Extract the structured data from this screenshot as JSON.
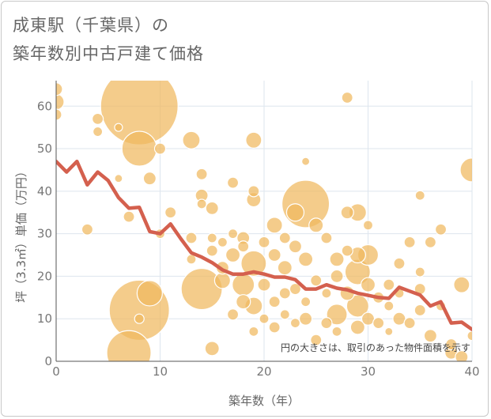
{
  "header": {
    "title_line1": "成東駅（千葉県）の",
    "title_line2": "築年数別中古戸建て価格"
  },
  "chart_data": {
    "type": "scatter",
    "title": "成東駅（千葉県）の築年数別中古戸建て価格",
    "xlabel": "築年数（年）",
    "ylabel": "坪（3.3㎡）単価（万円）",
    "xlim": [
      0,
      40
    ],
    "ylim": [
      0,
      66
    ],
    "x_ticks": [
      0,
      10,
      20,
      30,
      40
    ],
    "y_ticks": [
      0,
      10,
      20,
      30,
      40,
      50,
      60
    ],
    "grid": true,
    "note": "円の大きさは、取引のあった物件面積を示す",
    "colors": {
      "bubble": "#f0b95e",
      "bubble_stroke": "#ffffff",
      "trend": "#d4604e",
      "grid": "#dde5ee",
      "axis": "#555555"
    },
    "series": [
      {
        "kind": "bubbles",
        "points": [
          {
            "x": 0,
            "y": 64,
            "r": 8
          },
          {
            "x": 0,
            "y": 61,
            "r": 10
          },
          {
            "x": 0,
            "y": 58,
            "r": 7
          },
          {
            "x": 3,
            "y": 31,
            "r": 7
          },
          {
            "x": 4,
            "y": 57,
            "r": 7
          },
          {
            "x": 4,
            "y": 54,
            "r": 6
          },
          {
            "x": 6,
            "y": 55,
            "r": 5
          },
          {
            "x": 6,
            "y": 43,
            "r": 5
          },
          {
            "x": 7,
            "y": 34,
            "r": 7
          },
          {
            "x": 8,
            "y": 60,
            "r": 49
          },
          {
            "x": 8,
            "y": 50,
            "r": 22
          },
          {
            "x": 8,
            "y": 12,
            "r": 38
          },
          {
            "x": 7,
            "y": 2,
            "r": 28
          },
          {
            "x": 8,
            "y": 10,
            "r": 6
          },
          {
            "x": 9,
            "y": 16,
            "r": 16
          },
          {
            "x": 9,
            "y": 43,
            "r": 8
          },
          {
            "x": 10,
            "y": 50,
            "r": 7
          },
          {
            "x": 10,
            "y": 30,
            "r": 6
          },
          {
            "x": 11,
            "y": 35,
            "r": 7
          },
          {
            "x": 13,
            "y": 52,
            "r": 11
          },
          {
            "x": 14,
            "y": 44,
            "r": 7
          },
          {
            "x": 14,
            "y": 39,
            "r": 8
          },
          {
            "x": 14,
            "y": 37,
            "r": 6
          },
          {
            "x": 15,
            "y": 36,
            "r": 8
          },
          {
            "x": 15,
            "y": 3,
            "r": 9
          },
          {
            "x": 14,
            "y": 17,
            "r": 26
          },
          {
            "x": 13,
            "y": 29,
            "r": 7
          },
          {
            "x": 13,
            "y": 24,
            "r": 6
          },
          {
            "x": 15,
            "y": 29,
            "r": 6
          },
          {
            "x": 15,
            "y": 26,
            "r": 7
          },
          {
            "x": 16,
            "y": 28,
            "r": 6
          },
          {
            "x": 16,
            "y": 22,
            "r": 8
          },
          {
            "x": 16,
            "y": 19,
            "r": 10
          },
          {
            "x": 17,
            "y": 42,
            "r": 7
          },
          {
            "x": 17,
            "y": 30,
            "r": 6
          },
          {
            "x": 17,
            "y": 25,
            "r": 9
          },
          {
            "x": 17,
            "y": 11,
            "r": 7
          },
          {
            "x": 18,
            "y": 29,
            "r": 8
          },
          {
            "x": 18,
            "y": 27,
            "r": 7
          },
          {
            "x": 18,
            "y": 18,
            "r": 14
          },
          {
            "x": 18,
            "y": 14,
            "r": 9
          },
          {
            "x": 19,
            "y": 52,
            "r": 10
          },
          {
            "x": 19,
            "y": 40,
            "r": 7
          },
          {
            "x": 19,
            "y": 38,
            "r": 9
          },
          {
            "x": 19,
            "y": 23,
            "r": 16
          },
          {
            "x": 19,
            "y": 13,
            "r": 11
          },
          {
            "x": 19,
            "y": 7,
            "r": 6
          },
          {
            "x": 20,
            "y": 28,
            "r": 7
          },
          {
            "x": 20,
            "y": 18,
            "r": 8
          },
          {
            "x": 20,
            "y": 10,
            "r": 6
          },
          {
            "x": 21,
            "y": 32,
            "r": 10
          },
          {
            "x": 21,
            "y": 25,
            "r": 8
          },
          {
            "x": 21,
            "y": 14,
            "r": 7
          },
          {
            "x": 21,
            "y": 8,
            "r": 7
          },
          {
            "x": 22,
            "y": 29,
            "r": 7
          },
          {
            "x": 22,
            "y": 22,
            "r": 9
          },
          {
            "x": 22,
            "y": 16,
            "r": 7
          },
          {
            "x": 22,
            "y": 11,
            "r": 6
          },
          {
            "x": 23,
            "y": 35,
            "r": 11
          },
          {
            "x": 23,
            "y": 27,
            "r": 8
          },
          {
            "x": 23,
            "y": 17,
            "r": 7
          },
          {
            "x": 23,
            "y": 9,
            "r": 6
          },
          {
            "x": 24,
            "y": 47,
            "r": 5
          },
          {
            "x": 24,
            "y": 37,
            "r": 30
          },
          {
            "x": 24,
            "y": 24,
            "r": 9
          },
          {
            "x": 24,
            "y": 14,
            "r": 6
          },
          {
            "x": 24,
            "y": 10,
            "r": 8
          },
          {
            "x": 25,
            "y": 32,
            "r": 9
          },
          {
            "x": 25,
            "y": 19,
            "r": 7
          },
          {
            "x": 25,
            "y": 5,
            "r": 7
          },
          {
            "x": 26,
            "y": 29,
            "r": 7
          },
          {
            "x": 26,
            "y": 16,
            "r": 6
          },
          {
            "x": 26,
            "y": 9,
            "r": 7
          },
          {
            "x": 27,
            "y": 24,
            "r": 9
          },
          {
            "x": 27,
            "y": 20,
            "r": 8
          },
          {
            "x": 27,
            "y": 11,
            "r": 13
          },
          {
            "x": 27,
            "y": 7,
            "r": 6
          },
          {
            "x": 28,
            "y": 62,
            "r": 7
          },
          {
            "x": 28,
            "y": 35,
            "r": 8
          },
          {
            "x": 28,
            "y": 26,
            "r": 7
          },
          {
            "x": 28,
            "y": 16,
            "r": 9
          },
          {
            "x": 29,
            "y": 35,
            "r": 11
          },
          {
            "x": 29,
            "y": 25,
            "r": 10
          },
          {
            "x": 29,
            "y": 21,
            "r": 16
          },
          {
            "x": 29,
            "y": 13,
            "r": 14
          },
          {
            "x": 29,
            "y": 8,
            "r": 9
          },
          {
            "x": 30,
            "y": 32,
            "r": 6
          },
          {
            "x": 30,
            "y": 25,
            "r": 13
          },
          {
            "x": 30,
            "y": 18,
            "r": 9
          },
          {
            "x": 30,
            "y": 10,
            "r": 8
          },
          {
            "x": 31,
            "y": 15,
            "r": 7
          },
          {
            "x": 31,
            "y": 9,
            "r": 7
          },
          {
            "x": 32,
            "y": 18,
            "r": 7
          },
          {
            "x": 32,
            "y": 13,
            "r": 6
          },
          {
            "x": 32,
            "y": 7,
            "r": 5
          },
          {
            "x": 33,
            "y": 23,
            "r": 7
          },
          {
            "x": 33,
            "y": 16,
            "r": 6
          },
          {
            "x": 33,
            "y": 10,
            "r": 8
          },
          {
            "x": 34,
            "y": 28,
            "r": 7
          },
          {
            "x": 34,
            "y": 9,
            "r": 7
          },
          {
            "x": 35,
            "y": 39,
            "r": 6
          },
          {
            "x": 35,
            "y": 21,
            "r": 6
          },
          {
            "x": 35,
            "y": 17,
            "r": 7
          },
          {
            "x": 35,
            "y": 12,
            "r": 7
          },
          {
            "x": 36,
            "y": 28,
            "r": 7
          },
          {
            "x": 36,
            "y": 6,
            "r": 8
          },
          {
            "x": 37,
            "y": 31,
            "r": 7
          },
          {
            "x": 37,
            "y": 13,
            "r": 6
          },
          {
            "x": 38,
            "y": 4,
            "r": 7
          },
          {
            "x": 38,
            "y": 2,
            "r": 8
          },
          {
            "x": 39,
            "y": 18,
            "r": 10
          },
          {
            "x": 39,
            "y": 1,
            "r": 8
          },
          {
            "x": 40,
            "y": 45,
            "r": 15
          },
          {
            "x": 40,
            "y": 6,
            "r": 6
          }
        ]
      },
      {
        "kind": "trend",
        "points": [
          {
            "x": 0,
            "y": 47
          },
          {
            "x": 1,
            "y": 44.5
          },
          {
            "x": 2,
            "y": 47
          },
          {
            "x": 3,
            "y": 41.5
          },
          {
            "x": 4,
            "y": 44.5
          },
          {
            "x": 5,
            "y": 42.5
          },
          {
            "x": 6,
            "y": 38.5
          },
          {
            "x": 7,
            "y": 36
          },
          {
            "x": 8,
            "y": 36.2
          },
          {
            "x": 9,
            "y": 30.5
          },
          {
            "x": 10,
            "y": 30
          },
          {
            "x": 11,
            "y": 32.3
          },
          {
            "x": 12,
            "y": 28.8
          },
          {
            "x": 13,
            "y": 25.5
          },
          {
            "x": 14,
            "y": 24.5
          },
          {
            "x": 15,
            "y": 23.2
          },
          {
            "x": 16,
            "y": 21.5
          },
          {
            "x": 17,
            "y": 20.5
          },
          {
            "x": 18,
            "y": 20.5
          },
          {
            "x": 19,
            "y": 21
          },
          {
            "x": 20,
            "y": 20.5
          },
          {
            "x": 21,
            "y": 19.8
          },
          {
            "x": 22,
            "y": 19.8
          },
          {
            "x": 23,
            "y": 19.2
          },
          {
            "x": 24,
            "y": 17
          },
          {
            "x": 25,
            "y": 17
          },
          {
            "x": 26,
            "y": 18
          },
          {
            "x": 27,
            "y": 17.2
          },
          {
            "x": 28,
            "y": 16.8
          },
          {
            "x": 29,
            "y": 16
          },
          {
            "x": 30,
            "y": 15.5
          },
          {
            "x": 31,
            "y": 15
          },
          {
            "x": 32,
            "y": 14.8
          },
          {
            "x": 33,
            "y": 17.4
          },
          {
            "x": 34,
            "y": 16.5
          },
          {
            "x": 35,
            "y": 15.6
          },
          {
            "x": 36,
            "y": 13
          },
          {
            "x": 37,
            "y": 14
          },
          {
            "x": 38,
            "y": 9
          },
          {
            "x": 39,
            "y": 9.2
          },
          {
            "x": 40,
            "y": 7.5
          }
        ]
      }
    ]
  }
}
